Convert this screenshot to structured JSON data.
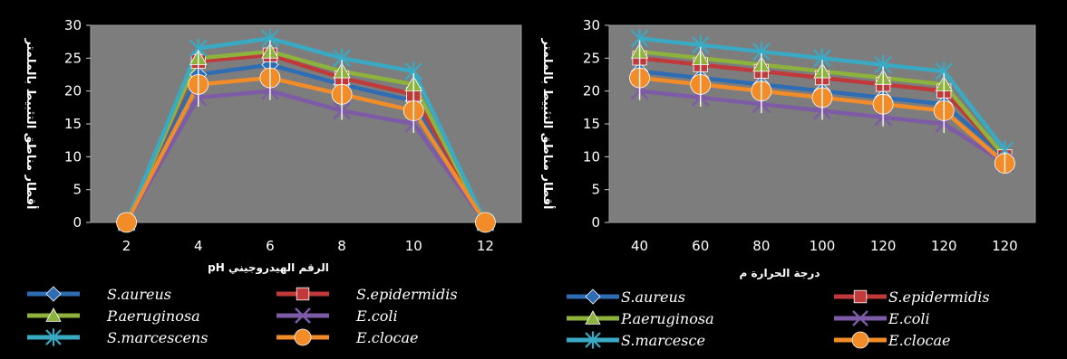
{
  "chart_data": [
    {
      "type": "line",
      "x": [
        2,
        4,
        6,
        8,
        10,
        12
      ],
      "xlabel": "pH الرقم الهيدروجيني",
      "ylabel": "أقطار مناطق التثبيط بالملمتر",
      "ylim": [
        0,
        30
      ],
      "yticks": [
        0,
        5,
        10,
        15,
        20,
        25,
        30
      ],
      "grid": false,
      "legend": "bottom",
      "series": [
        {
          "name": "S.aureus",
          "color": "#2e6db4",
          "marker": "diamond",
          "values": [
            0,
            22.5,
            24,
            21,
            18.5,
            0
          ]
        },
        {
          "name": "S.epidermidis",
          "color": "#c0393b",
          "marker": "square",
          "values": [
            0,
            24.5,
            25.5,
            22,
            19.5,
            0
          ]
        },
        {
          "name": "P.aeruginosa",
          "color": "#8db33c",
          "marker": "triangle",
          "values": [
            0,
            25,
            26,
            23,
            21,
            0
          ]
        },
        {
          "name": "E.coli",
          "color": "#7d5ba6",
          "marker": "x",
          "values": [
            0,
            19,
            20,
            17,
            15,
            0
          ]
        },
        {
          "name": "S.marcescens",
          "color": "#3aaac4",
          "marker": "star",
          "values": [
            0,
            26.5,
            28,
            25,
            23,
            0
          ]
        },
        {
          "name": "E.clocae",
          "color": "#f28c28",
          "marker": "circle",
          "values": [
            0,
            21,
            22,
            19.5,
            17,
            0
          ]
        }
      ]
    },
    {
      "type": "line",
      "x": [
        "40",
        "60",
        "80",
        "100",
        "120",
        "120",
        "120"
      ],
      "xlabel": "درجة الحرارة م",
      "ylabel": "أقطار مناطق التثبيط بالملمتر",
      "ylim": [
        0,
        30
      ],
      "yticks": [
        0,
        5,
        10,
        15,
        20,
        25,
        30
      ],
      "grid": false,
      "legend": "bottom",
      "series": [
        {
          "name": "S.aureus",
          "color": "#2e6db4",
          "marker": "diamond",
          "values": [
            23,
            22,
            21,
            20,
            19,
            18,
            10
          ]
        },
        {
          "name": "S.epidermidis",
          "color": "#c0393b",
          "marker": "square",
          "values": [
            25,
            24,
            23,
            22,
            21,
            20,
            10
          ]
        },
        {
          "name": "P.aeruginosa",
          "color": "#8db33c",
          "marker": "triangle",
          "values": [
            26,
            25,
            24,
            23,
            22,
            21,
            10
          ]
        },
        {
          "name": "E.coli",
          "color": "#7d5ba6",
          "marker": "x",
          "values": [
            20,
            19,
            18,
            17,
            16,
            15,
            9
          ]
        },
        {
          "name": "S.marcesce",
          "color": "#3aaac4",
          "marker": "star",
          "values": [
            28,
            27,
            26,
            25,
            24,
            23,
            11
          ]
        },
        {
          "name": "E.clocae",
          "color": "#f28c28",
          "marker": "circle",
          "values": [
            22,
            21,
            20,
            19,
            18,
            17,
            9
          ]
        }
      ]
    }
  ]
}
